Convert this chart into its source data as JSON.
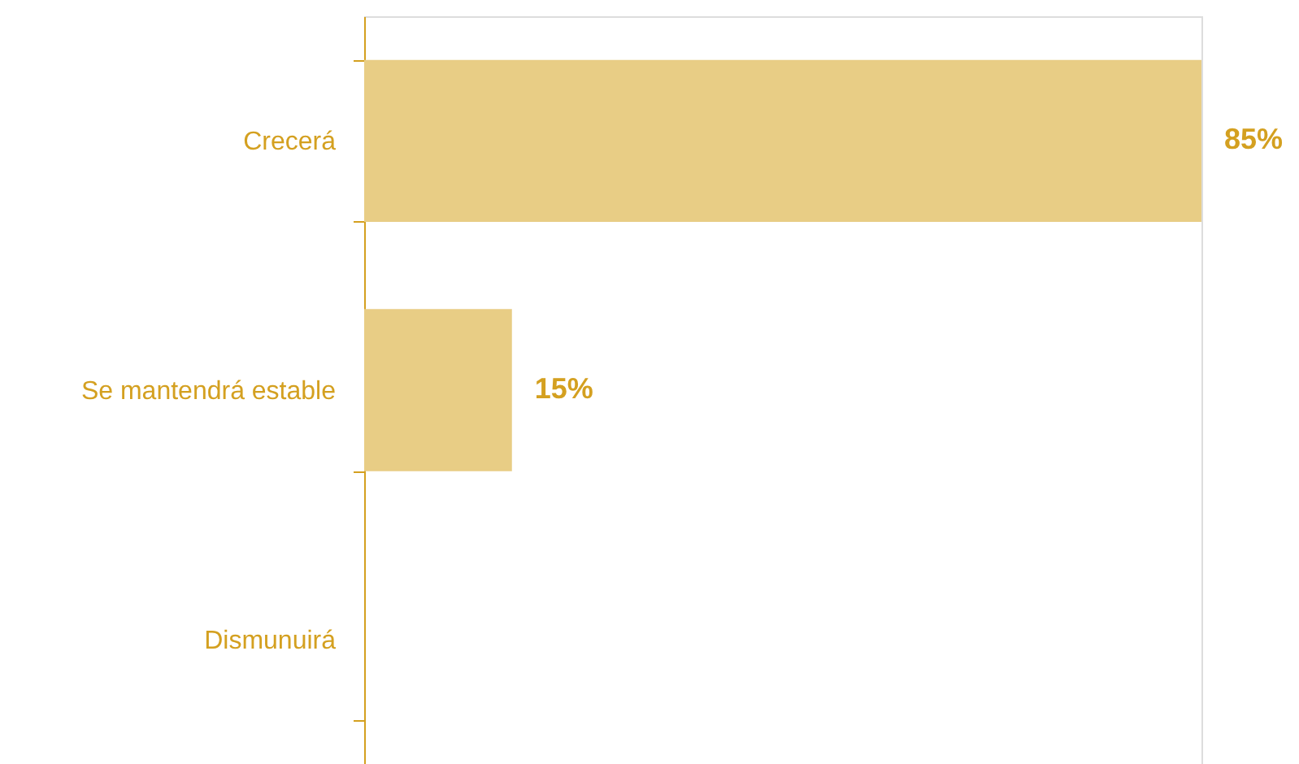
{
  "chart_data": {
    "type": "bar",
    "orientation": "horizontal",
    "categories": [
      "Crecerá",
      "Se mantendrá estable",
      "Dismunuirá"
    ],
    "values": [
      85,
      15,
      0
    ],
    "value_labels": [
      "85%",
      "15%",
      null
    ],
    "color": "#e8cd85",
    "grid": false,
    "tick_labels": "y"
  }
}
